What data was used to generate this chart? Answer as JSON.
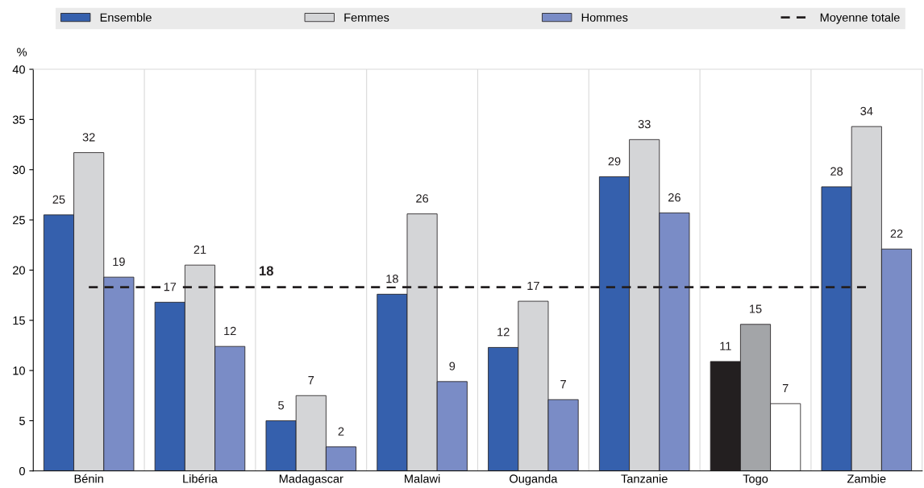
{
  "chart_data": {
    "type": "bar",
    "categories": [
      "Bénin",
      "Libéria",
      "Madagascar",
      "Malawi",
      "Ouganda",
      "Tanzanie",
      "Togo",
      "Zambie"
    ],
    "ylabel": "%",
    "ylim": [
      0,
      40
    ],
    "yticks": [
      0,
      5,
      10,
      15,
      20,
      25,
      30,
      35,
      40
    ],
    "grid": "x",
    "legend": "top",
    "series": [
      {
        "name": "Ensemble",
        "color": "#3560ad",
        "colors": [
          "#3560ad",
          "#3560ad",
          "#3560ad",
          "#3560ad",
          "#3560ad",
          "#3560ad",
          "#231f20",
          "#3560ad"
        ],
        "values": [
          25.5,
          16.8,
          5.0,
          17.6,
          12.3,
          29.3,
          10.9,
          28.3
        ],
        "value_labels": [
          "25",
          "17",
          "5",
          "18",
          "12",
          "29",
          "11",
          "28"
        ]
      },
      {
        "name": "Femmes",
        "color": "#d4d5d7",
        "colors": [
          "#d4d5d7",
          "#d4d5d7",
          "#d4d5d7",
          "#d4d5d7",
          "#d4d5d7",
          "#d4d5d7",
          "#a3a5a8",
          "#d4d5d7"
        ],
        "values": [
          31.7,
          20.5,
          7.5,
          25.6,
          16.9,
          33.0,
          14.6,
          34.3
        ],
        "value_labels": [
          "32",
          "21",
          "7",
          "26",
          "17",
          "33",
          "15",
          "34"
        ]
      },
      {
        "name": "Hommes",
        "color": "#7a8cc6",
        "colors": [
          "#7a8cc6",
          "#7a8cc6",
          "#7a8cc6",
          "#7a8cc6",
          "#7a8cc6",
          "#7a8cc6",
          "#ffffff",
          "#7a8cc6"
        ],
        "values": [
          19.3,
          12.4,
          2.4,
          8.9,
          7.1,
          25.7,
          6.7,
          22.1
        ],
        "value_labels": [
          "19",
          "12",
          "2",
          "9",
          "7",
          "26",
          "7",
          "22"
        ]
      },
      {
        "type": "line",
        "name": "Moyenne totale",
        "color": "#231f20",
        "line_style": "dashed",
        "values": [
          18.3,
          18.3,
          18.3,
          18.3,
          18.3,
          18.3,
          18.3,
          18.3
        ]
      }
    ],
    "annotations": [
      {
        "text": "18",
        "x": "Madagascar",
        "y": 18.3
      }
    ]
  }
}
